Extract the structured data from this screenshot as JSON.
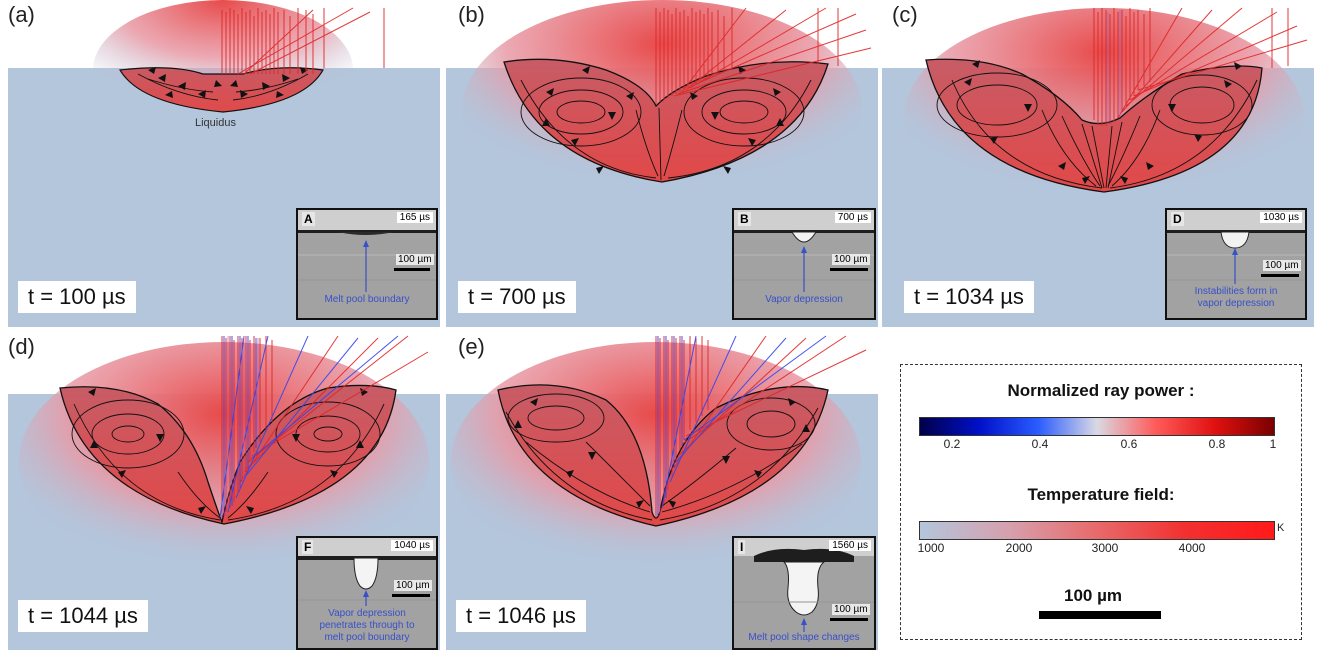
{
  "panels": [
    {
      "label": "(a)",
      "time": "t = 100 µs",
      "liquidus": "Liquidus",
      "inset": {
        "letter": "A",
        "time": "165 µs",
        "scale": "100 µm",
        "caption": [
          "Melt pool boundary"
        ]
      }
    },
    {
      "label": "(b)",
      "time": "t = 700 µs",
      "inset": {
        "letter": "B",
        "time": "700 µs",
        "scale": "100 µm",
        "caption": [
          "Vapor depression"
        ]
      }
    },
    {
      "label": "(c)",
      "time": "t = 1034 µs",
      "inset": {
        "letter": "D",
        "time": "1030 µs",
        "scale": "100 µm",
        "caption": [
          "Instabilities form in",
          "vapor depression"
        ]
      }
    },
    {
      "label": "(d)",
      "time": "t = 1044 µs",
      "inset": {
        "letter": "F",
        "time": "1040 µs",
        "scale": "100 µm",
        "caption": [
          "Vapor depression",
          "penetrates through to",
          "melt pool boundary"
        ]
      }
    },
    {
      "label": "(e)",
      "time": "t = 1046 µs",
      "inset": {
        "letter": "I",
        "time": "1560 µs",
        "scale": "100 µm",
        "caption": [
          "Melt pool shape changes"
        ]
      }
    }
  ],
  "legend": {
    "ray_title": "Normalized ray power :",
    "ray_ticks": [
      "0.2",
      "0.4",
      "0.6",
      "0.8",
      "1"
    ],
    "temp_title": "Temperature field:",
    "temp_ticks": [
      "1000",
      "2000",
      "3000",
      "4000"
    ],
    "temp_unit": "K",
    "scale_label": "100 µm"
  },
  "colors": {
    "substrate": "#b3c6dc",
    "melt": "#ee4646",
    "laser_red": "#e02525",
    "laser_blue": "#3344ee",
    "caption_blue": "#3850c8"
  }
}
